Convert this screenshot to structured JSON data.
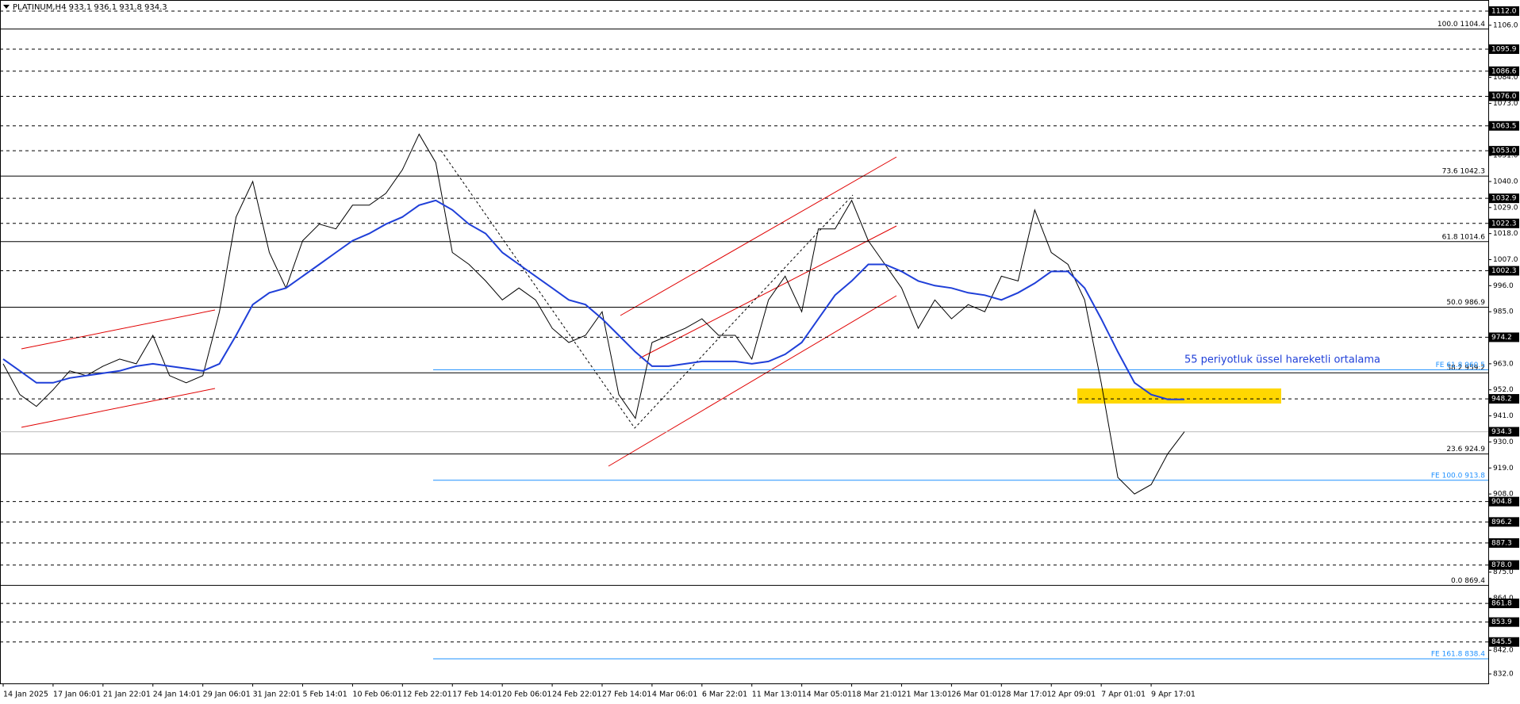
{
  "chart_data": {
    "type": "line",
    "title": "PLATINUM,H4  933.1 936.1 931.8 934.3",
    "categories": [
      "14 Jan 2025",
      null,
      null,
      "17 Jan 06:01",
      null,
      null,
      "21 Jan 22:01",
      null,
      null,
      "24 Jan 14:01",
      null,
      null,
      "29 Jan 06:01",
      null,
      null,
      "31 Jan 22:01",
      null,
      null,
      "5 Feb 14:01",
      null,
      null,
      "10 Feb 06:01",
      null,
      null,
      "12 Feb 22:01",
      null,
      null,
      "17 Feb 14:01",
      null,
      null,
      "20 Feb 06:01",
      null,
      null,
      "24 Feb 22:01",
      null,
      null,
      "27 Feb 14:01",
      null,
      null,
      "4 Mar 06:01",
      null,
      null,
      "6 Mar 22:01",
      null,
      null,
      "11 Mar 13:01",
      null,
      null,
      "14 Mar 05:01",
      null,
      null,
      "18 Mar 21:01",
      null,
      null,
      "21 Mar 13:01",
      null,
      null,
      "26 Mar 01:01",
      null,
      null,
      "28 Mar 17:01",
      null,
      null,
      "2 Apr 09:01",
      null,
      null,
      "7 Apr 01:01",
      null,
      null,
      "9 Apr 17:01",
      null,
      null
    ],
    "series": [
      {
        "color": "#000000",
        "values": [
          963,
          950,
          945,
          952,
          960,
          958,
          962,
          965,
          963,
          975,
          958,
          955,
          958,
          985,
          1025,
          1040,
          1010,
          995,
          1015,
          1022,
          1020,
          1030,
          1030,
          1035,
          1045,
          1060,
          1048,
          1010,
          1005,
          998,
          990,
          995,
          990,
          978,
          972,
          975,
          985,
          950,
          940,
          972,
          975,
          978,
          982,
          975,
          975,
          965,
          990,
          1000,
          985,
          1020,
          1020,
          1032,
          1015,
          1005,
          995,
          978,
          990,
          982,
          988,
          985,
          1000,
          998,
          1028,
          1010,
          1005,
          990,
          955,
          915,
          908,
          912,
          925,
          934.3
        ]
      },
      {
        "name": "55 periyotluk üssel hareketli ortalama",
        "color": "#1f3fd8",
        "values": [
          965,
          960,
          955,
          955,
          957,
          958,
          959,
          960,
          962,
          963,
          962,
          961,
          960,
          963,
          975,
          988,
          993,
          995,
          1000,
          1005,
          1010,
          1015,
          1018,
          1022,
          1025,
          1030,
          1032,
          1028,
          1022,
          1018,
          1010,
          1005,
          1000,
          995,
          990,
          988,
          982,
          975,
          968,
          962,
          962,
          963,
          964,
          964,
          964,
          963,
          964,
          967,
          972,
          982,
          992,
          998,
          1005,
          1005,
          1002,
          998,
          996,
          995,
          993,
          992,
          990,
          993,
          997,
          1002,
          1002,
          995,
          982,
          968,
          955,
          950,
          948,
          948
        ]
      }
    ],
    "ylim": [
      828,
      1116
    ],
    "yticks": [
      {
        "value": 1106,
        "label": "1106.0"
      },
      {
        "value": 1084,
        "label": "1084.0"
      },
      {
        "value": 1073,
        "label": "1073.0"
      },
      {
        "value": 1051,
        "label": "1051.0"
      },
      {
        "value": 1040,
        "label": "1040.0"
      },
      {
        "value": 1029,
        "label": "1029.0"
      },
      {
        "value": 1018,
        "label": "1018.0"
      },
      {
        "value": 1007,
        "label": "1007.0"
      },
      {
        "value": 996,
        "label": "996.0"
      },
      {
        "value": 985,
        "label": "985.0"
      },
      {
        "value": 963,
        "label": "963.0"
      },
      {
        "value": 952,
        "label": "952.0"
      },
      {
        "value": 941,
        "label": "941.0"
      },
      {
        "value": 930,
        "label": "930.0"
      },
      {
        "value": 919,
        "label": "919.0"
      },
      {
        "value": 908,
        "label": "908.0"
      },
      {
        "value": 875,
        "label": "875.0"
      },
      {
        "value": 864,
        "label": "864.0"
      },
      {
        "value": 842,
        "label": "842.0"
      },
      {
        "value": 832,
        "label": "832.0"
      }
    ],
    "levels": [
      {
        "value": 1112,
        "label": "1112.0"
      },
      {
        "value": 1095.9,
        "label": "1095.9"
      },
      {
        "value": 1086.6,
        "label": "1086.6"
      },
      {
        "value": 1076,
        "label": "1076.0"
      },
      {
        "value": 1063.5,
        "label": "1063.5"
      },
      {
        "value": 1053,
        "label": "1053.0"
      },
      {
        "value": 1032.9,
        "label": "1032.9"
      },
      {
        "value": 1022.3,
        "label": "1022.3"
      },
      {
        "value": 1002.3,
        "label": "1002.3"
      },
      {
        "value": 974.2,
        "label": "974.2"
      },
      {
        "value": 948.2,
        "label": "948.2"
      },
      {
        "value": 904.8,
        "label": "904.8"
      },
      {
        "value": 896.2,
        "label": "896.2"
      },
      {
        "value": 887.3,
        "label": "887.3"
      },
      {
        "value": 878,
        "label": "878.0"
      },
      {
        "value": 861.8,
        "label": "861.8"
      },
      {
        "value": 853.9,
        "label": "853.9"
      },
      {
        "value": 845.5,
        "label": "845.5"
      }
    ],
    "current": {
      "value": 934.3,
      "label": "934.3"
    },
    "fibonacci": [
      {
        "value": 1104.4,
        "label": "100.0 1104.4"
      },
      {
        "value": 1042.3,
        "label": "73.6 1042.3"
      },
      {
        "value": 1014.6,
        "label": "61.8 1014.6"
      },
      {
        "value": 986.9,
        "label": "50.0 986.9"
      },
      {
        "value": 959.2,
        "label": "38.2 959.2"
      },
      {
        "value": 924.9,
        "label": "23.6 924.9"
      },
      {
        "value": 869.4,
        "label": "0.0 869.4"
      }
    ],
    "fibonacci_expansion": [
      {
        "value": 960.5,
        "label": "FE 61.8 960.5"
      },
      {
        "value": 913.8,
        "label": "FE 100.0 913.8"
      },
      {
        "value": 838.4,
        "label": "FE 161.8 838.4"
      }
    ],
    "fe_color": "#1e90ff"
  }
}
